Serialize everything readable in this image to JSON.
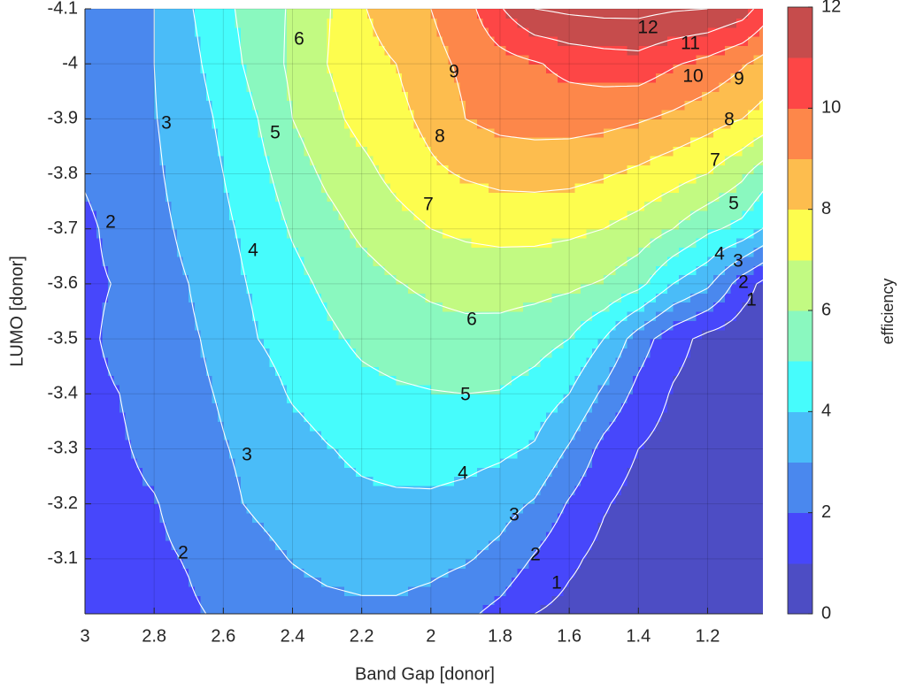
{
  "chart_data": {
    "type": "contour",
    "x_label": "Band Gap [donor]",
    "y_label": "LUMO [donor]",
    "colorbar_label": "efficiency",
    "x": [
      3.0,
      2.9,
      2.8,
      2.7,
      2.6,
      2.5,
      2.4,
      2.3,
      2.2,
      2.1,
      2.0,
      1.9,
      1.8,
      1.7,
      1.6,
      1.5,
      1.4,
      1.3,
      1.2,
      1.1,
      1.0
    ],
    "y": [
      -3.0,
      -3.1,
      -3.2,
      -3.3,
      -3.4,
      -3.5,
      -3.6,
      -3.7,
      -3.8,
      -3.9,
      -4.0,
      -4.1
    ],
    "z": [
      [
        1.3,
        1.5,
        1.7,
        1.9,
        2.1,
        2.3,
        2.5,
        2.7,
        2.8,
        2.8,
        2.6,
        2.2,
        1.7,
        1.0,
        0.7,
        0.5,
        0.3,
        0.2,
        0.1,
        0.0,
        0.0
      ],
      [
        1.5,
        1.7,
        1.85,
        2.05,
        2.4,
        2.7,
        3.05,
        3.3,
        3.4,
        3.4,
        3.3,
        3.1,
        2.7,
        1.9,
        1.2,
        0.7,
        0.5,
        0.3,
        0.2,
        0.1,
        0.05
      ],
      [
        1.6,
        1.8,
        1.95,
        2.3,
        2.8,
        3.15,
        3.45,
        3.65,
        3.8,
        3.85,
        3.85,
        3.7,
        3.4,
        2.9,
        1.9,
        1.1,
        0.6,
        0.4,
        0.2,
        0.1,
        0.05
      ],
      [
        1.7,
        1.9,
        2.2,
        2.6,
        2.95,
        3.25,
        3.6,
        3.95,
        4.2,
        4.35,
        4.4,
        4.35,
        4.2,
        3.9,
        2.9,
        1.7,
        1.0,
        0.6,
        0.3,
        0.2,
        0.1
      ],
      [
        1.8,
        2.0,
        2.35,
        2.75,
        3.1,
        3.55,
        4.1,
        4.45,
        4.7,
        4.85,
        4.95,
        5.0,
        4.95,
        4.6,
        4.0,
        2.8,
        1.7,
        0.9,
        0.5,
        0.3,
        0.15
      ],
      [
        1.85,
        2.2,
        2.5,
        2.85,
        3.3,
        4.0,
        4.4,
        4.8,
        5.2,
        5.45,
        5.6,
        5.7,
        5.65,
        5.4,
        5.0,
        4.0,
        2.5,
        1.4,
        0.7,
        0.4,
        0.2
      ],
      [
        1.85,
        2.05,
        2.65,
        3.0,
        3.6,
        4.2,
        4.7,
        5.2,
        5.6,
        5.95,
        6.2,
        6.35,
        6.4,
        6.35,
        6.2,
        5.9,
        5.3,
        4.0,
        3.2,
        1.5,
        0.3
      ],
      [
        1.8,
        2.3,
        2.75,
        3.2,
        3.8,
        4.4,
        5.1,
        5.65,
        6.2,
        6.6,
        7.0,
        7.2,
        7.3,
        7.3,
        7.2,
        7.0,
        6.6,
        6.0,
        5.2,
        4.7,
        3.5
      ],
      [
        2.1,
        2.5,
        2.85,
        3.4,
        4.0,
        4.7,
        5.5,
        6.2,
        6.7,
        7.3,
        7.8,
        8.1,
        8.3,
        8.35,
        8.3,
        8.1,
        7.8,
        7.4,
        7.0,
        6.2,
        5.0
      ],
      [
        2.15,
        2.6,
        2.95,
        3.5,
        4.2,
        5.0,
        6.0,
        6.7,
        7.3,
        7.7,
        8.3,
        9.0,
        9.3,
        9.4,
        9.4,
        9.3,
        9.1,
        8.8,
        8.4,
        8.0,
        7.4
      ],
      [
        2.2,
        2.65,
        3.0,
        3.7,
        4.5,
        5.4,
        6.2,
        7.0,
        7.6,
        8.0,
        8.7,
        9.2,
        9.6,
        9.9,
        10.3,
        10.5,
        10.6,
        10.1,
        9.7,
        9.1,
        8.4
      ],
      [
        2.3,
        2.7,
        3.0,
        3.9,
        4.7,
        5.6,
        6.1,
        6.9,
        7.9,
        8.6,
        9.0,
        9.6,
        10.9,
        12.0,
        12.2,
        12.3,
        12.3,
        12.1,
        12.0,
        11.5,
        10.0
      ]
    ],
    "levels": [
      0,
      1,
      2,
      3,
      4,
      5,
      6,
      7,
      8,
      9,
      10,
      11,
      12
    ],
    "colors": [
      "#4d4dc4",
      "#4747fb",
      "#4a88ee",
      "#4abcf8",
      "#46fcfc",
      "#8af8bf",
      "#c2fa82",
      "#fdfd4e",
      "#fdbd4e",
      "#fd874a",
      "#fd4646",
      "#c64c4c"
    ],
    "xlim": [
      3,
      1.04
    ],
    "ylim": [
      -3,
      -4.1
    ],
    "xticks": [
      3,
      2.8,
      2.6,
      2.4,
      2.2,
      2,
      1.8,
      1.6,
      1.4,
      1.2
    ],
    "yticks": [
      -4.1,
      -4,
      -3.9,
      -3.8,
      -3.7,
      -3.6,
      -3.5,
      -3.4,
      -3.3,
      -3.2,
      -3.1
    ],
    "cticks": [
      0,
      2,
      4,
      6,
      8,
      10,
      12
    ],
    "grid": true
  }
}
